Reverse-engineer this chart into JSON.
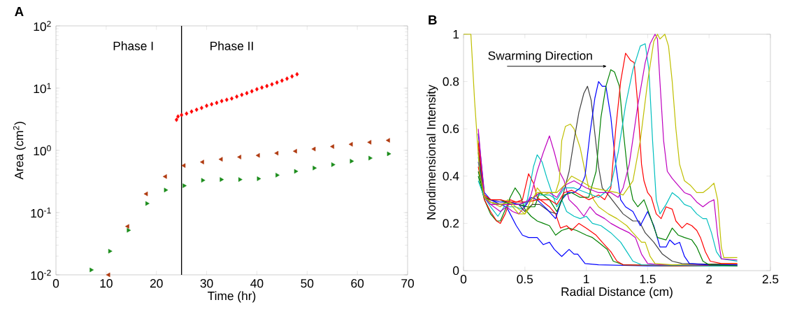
{
  "chart_data": [
    {
      "type": "scatter",
      "title": "A",
      "xlabel": "Time (hr)",
      "ylabel": "Area (cm$^{2}$)",
      "log": "y",
      "xlim": [
        0,
        70
      ],
      "ylim": [
        0.01,
        100
      ],
      "xticks": [
        0,
        10,
        20,
        30,
        40,
        50,
        60,
        70
      ],
      "yticks": [
        {
          "value": 0.01,
          "label": "10$^{-2}$"
        },
        {
          "value": 0.1,
          "label": "10$^{-1}$"
        },
        {
          "value": 1,
          "label": "10$^{0}$"
        },
        {
          "value": 10,
          "label": "10$^{1}$"
        },
        {
          "value": 100,
          "label": "10$^{2}$"
        }
      ],
      "ref_lines": [
        {
          "axis": "x",
          "value": 25,
          "color": "#000000"
        }
      ],
      "annotations": [
        "Phase I",
        "Phase II"
      ],
      "series": [
        {
          "color": "#ff0000",
          "marker": "diamond",
          "x": [
            24,
            24.3,
            25,
            26,
            27,
            28,
            29,
            30,
            31,
            32,
            33,
            34,
            35,
            36,
            37,
            38,
            39,
            40,
            41,
            42,
            43,
            44,
            45,
            46,
            47,
            48
          ],
          "values": [
            3.1,
            3.5,
            3.7,
            3.9,
            4.2,
            4.5,
            4.8,
            5.2,
            5.5,
            5.8,
            6.2,
            6.5,
            6.8,
            7.3,
            7.8,
            8.3,
            8.9,
            9.6,
            10.2,
            10.8,
            11.5,
            12.3,
            13.2,
            14.2,
            15.4,
            16.7
          ]
        },
        {
          "color": "#b03a10",
          "marker": "triangle-left",
          "x": [
            10.5,
            14.3,
            18,
            21.8,
            25.5,
            29.2,
            32.9,
            36.6,
            40.3,
            44,
            47.7,
            51.4,
            55.1,
            58.8,
            62.5,
            66.2
          ],
          "values": [
            0.01,
            0.06,
            0.2,
            0.38,
            0.57,
            0.65,
            0.72,
            0.78,
            0.83,
            0.9,
            0.97,
            1.05,
            1.15,
            1.25,
            1.35,
            1.45
          ]
        },
        {
          "color": "#1a8c1a",
          "marker": "triangle-right",
          "x": [
            7,
            10.7,
            14.4,
            18.1,
            21.8,
            25.5,
            29.2,
            32.9,
            36.6,
            40.3,
            44,
            47.7,
            51.4,
            55.1,
            58.8,
            62.5,
            66.2
          ],
          "values": [
            0.012,
            0.024,
            0.052,
            0.14,
            0.23,
            0.27,
            0.33,
            0.34,
            0.34,
            0.35,
            0.4,
            0.46,
            0.52,
            0.59,
            0.67,
            0.75,
            0.88
          ]
        }
      ]
    },
    {
      "type": "line",
      "title": "B",
      "xlabel": "Radial Distance (cm)",
      "ylabel": "Nondimensional Intensity",
      "xlim": [
        0,
        2.5
      ],
      "ylim": [
        0,
        1
      ],
      "xticks": [
        0,
        0.5,
        1,
        1.5,
        2,
        2.5
      ],
      "yticks": [
        0,
        0.2,
        0.4,
        0.6,
        0.8,
        1
      ],
      "annotations": [
        "Swarming Direction"
      ],
      "series": [
        {
          "color": "#0000ff",
          "x": [
            0.12,
            0.17,
            0.22,
            0.3,
            0.35,
            0.38,
            0.43,
            0.48,
            0.53,
            0.6,
            0.65,
            0.7,
            0.74,
            0.8,
            0.86,
            0.9,
            0.93,
            0.99,
            1.1,
            1.5,
            2.0,
            2.23
          ],
          "values": [
            0.58,
            0.33,
            0.3,
            0.28,
            0.27,
            0.24,
            0.19,
            0.15,
            0.14,
            0.14,
            0.11,
            0.12,
            0.09,
            0.06,
            0.09,
            0.07,
            0.07,
            0.03,
            0.025,
            0.02,
            0.02,
            0.02
          ]
        },
        {
          "color": "#008000",
          "x": [
            0.12,
            0.17,
            0.22,
            0.27,
            0.3,
            0.35,
            0.38,
            0.42,
            0.46,
            0.5,
            0.55,
            0.6,
            0.65,
            0.7,
            0.75,
            0.8,
            0.86,
            0.92,
            1.0,
            1.05,
            1.1,
            1.17,
            1.22,
            1.3,
            1.7,
            2.23
          ],
          "values": [
            0.4,
            0.3,
            0.24,
            0.21,
            0.21,
            0.27,
            0.31,
            0.35,
            0.32,
            0.26,
            0.23,
            0.21,
            0.2,
            0.19,
            0.15,
            0.17,
            0.18,
            0.17,
            0.15,
            0.14,
            0.12,
            0.09,
            0.04,
            0.025,
            0.02,
            0.02
          ]
        },
        {
          "color": "#ff0000",
          "x": [
            0.12,
            0.17,
            0.22,
            0.27,
            0.3,
            0.34,
            0.38,
            0.43,
            0.48,
            0.53,
            0.57,
            0.6,
            0.65,
            0.7,
            0.75,
            0.79,
            0.84,
            0.88,
            0.94,
            1.0,
            1.08,
            1.13,
            1.2,
            1.25,
            1.3,
            1.8,
            2.23
          ],
          "values": [
            0.44,
            0.3,
            0.25,
            0.21,
            0.2,
            0.24,
            0.3,
            0.29,
            0.3,
            0.41,
            0.37,
            0.31,
            0.29,
            0.27,
            0.24,
            0.18,
            0.19,
            0.17,
            0.2,
            0.18,
            0.15,
            0.12,
            0.08,
            0.04,
            0.025,
            0.02,
            0.025
          ]
        },
        {
          "color": "#00bfbf",
          "x": [
            0.12,
            0.17,
            0.22,
            0.28,
            0.33,
            0.38,
            0.42,
            0.48,
            0.52,
            0.57,
            0.6,
            0.64,
            0.68,
            0.72,
            0.76,
            0.8,
            0.84,
            0.9,
            0.95,
            1.0,
            1.05,
            1.12,
            1.2,
            1.28,
            1.33,
            1.38,
            1.45,
            2.0,
            2.23
          ],
          "values": [
            0.48,
            0.31,
            0.27,
            0.23,
            0.27,
            0.27,
            0.27,
            0.26,
            0.3,
            0.44,
            0.49,
            0.46,
            0.39,
            0.33,
            0.27,
            0.3,
            0.25,
            0.23,
            0.22,
            0.23,
            0.2,
            0.19,
            0.16,
            0.12,
            0.08,
            0.04,
            0.025,
            0.02,
            0.02
          ]
        },
        {
          "color": "#bf00bf",
          "x": [
            0.12,
            0.17,
            0.22,
            0.3,
            0.35,
            0.4,
            0.45,
            0.5,
            0.55,
            0.6,
            0.65,
            0.7,
            0.74,
            0.78,
            0.82,
            0.86,
            0.92,
            0.98,
            1.03,
            1.08,
            1.15,
            1.2,
            1.27,
            1.35,
            1.4,
            1.45,
            1.5,
            1.6,
            2.23
          ],
          "values": [
            0.52,
            0.31,
            0.28,
            0.25,
            0.27,
            0.25,
            0.24,
            0.27,
            0.32,
            0.42,
            0.5,
            0.57,
            0.5,
            0.42,
            0.38,
            0.3,
            0.27,
            0.23,
            0.27,
            0.24,
            0.22,
            0.2,
            0.18,
            0.16,
            0.14,
            0.07,
            0.03,
            0.025,
            0.025
          ]
        },
        {
          "color": "#bfbf00",
          "x": [
            0.12,
            0.17,
            0.22,
            0.3,
            0.36,
            0.4,
            0.45,
            0.5,
            0.56,
            0.6,
            0.65,
            0.7,
            0.75,
            0.78,
            0.8,
            0.83,
            0.87,
            0.9,
            0.95,
            0.99,
            1.02,
            1.06,
            1.1,
            1.18,
            1.25,
            1.33,
            1.38,
            1.45,
            1.48,
            1.52,
            1.56,
            1.7,
            2.23
          ],
          "values": [
            0.55,
            0.32,
            0.29,
            0.27,
            0.3,
            0.27,
            0.24,
            0.24,
            0.28,
            0.35,
            0.32,
            0.33,
            0.33,
            0.38,
            0.55,
            0.61,
            0.62,
            0.6,
            0.52,
            0.42,
            0.35,
            0.3,
            0.27,
            0.24,
            0.22,
            0.19,
            0.16,
            0.12,
            0.12,
            0.06,
            0.03,
            0.025,
            0.03
          ]
        },
        {
          "color": "#404040",
          "x": [
            0.12,
            0.17,
            0.22,
            0.3,
            0.38,
            0.45,
            0.5,
            0.56,
            0.62,
            0.7,
            0.76,
            0.8,
            0.86,
            0.9,
            0.94,
            0.98,
            1.01,
            1.04,
            1.07,
            1.1,
            1.13,
            1.18,
            1.24,
            1.3,
            1.38,
            1.43,
            1.48,
            1.55,
            1.62,
            1.7,
            1.78,
            2.23
          ],
          "values": [
            0.5,
            0.31,
            0.29,
            0.28,
            0.29,
            0.28,
            0.25,
            0.28,
            0.28,
            0.25,
            0.24,
            0.3,
            0.42,
            0.55,
            0.67,
            0.75,
            0.78,
            0.72,
            0.58,
            0.44,
            0.35,
            0.32,
            0.28,
            0.24,
            0.21,
            0.21,
            0.16,
            0.12,
            0.07,
            0.04,
            0.03,
            0.025
          ]
        },
        {
          "color": "#0000ff",
          "x": [
            0.12,
            0.17,
            0.22,
            0.3,
            0.38,
            0.45,
            0.5,
            0.55,
            0.6,
            0.68,
            0.75,
            0.8,
            0.85,
            0.9,
            0.95,
            0.99,
            1.03,
            1.07,
            1.1,
            1.13,
            1.16,
            1.2,
            1.24,
            1.28,
            1.32,
            1.38,
            1.44,
            1.5,
            1.55,
            1.6,
            1.65,
            1.68,
            1.72,
            1.76,
            1.8,
            1.84,
            2.0,
            2.23
          ],
          "values": [
            0.46,
            0.31,
            0.3,
            0.29,
            0.29,
            0.28,
            0.27,
            0.31,
            0.3,
            0.26,
            0.22,
            0.3,
            0.33,
            0.33,
            0.35,
            0.4,
            0.58,
            0.73,
            0.8,
            0.78,
            0.78,
            0.65,
            0.45,
            0.3,
            0.27,
            0.25,
            0.19,
            0.25,
            0.19,
            0.1,
            0.1,
            0.13,
            0.11,
            0.12,
            0.06,
            0.03,
            0.025,
            0.025
          ]
        },
        {
          "color": "#008000",
          "x": [
            0.12,
            0.17,
            0.22,
            0.3,
            0.38,
            0.45,
            0.52,
            0.58,
            0.62,
            0.7,
            0.76,
            0.82,
            0.88,
            0.95,
            1.02,
            1.08,
            1.12,
            1.16,
            1.2,
            1.23,
            1.27,
            1.3,
            1.34,
            1.38,
            1.42,
            1.47,
            1.52,
            1.58,
            1.65,
            1.7,
            1.75,
            1.8,
            1.86,
            1.9,
            1.95,
            2.0,
            2.23
          ],
          "values": [
            0.42,
            0.31,
            0.3,
            0.3,
            0.28,
            0.28,
            0.27,
            0.27,
            0.33,
            0.3,
            0.25,
            0.32,
            0.33,
            0.31,
            0.31,
            0.42,
            0.65,
            0.78,
            0.85,
            0.84,
            0.78,
            0.6,
            0.4,
            0.3,
            0.27,
            0.3,
            0.23,
            0.14,
            0.13,
            0.18,
            0.15,
            0.14,
            0.13,
            0.1,
            0.04,
            0.025,
            0.02
          ]
        },
        {
          "color": "#ff0000",
          "x": [
            0.12,
            0.17,
            0.22,
            0.3,
            0.38,
            0.45,
            0.52,
            0.6,
            0.7,
            0.76,
            0.82,
            0.88,
            0.95,
            1.02,
            1.1,
            1.15,
            1.2,
            1.24,
            1.28,
            1.32,
            1.36,
            1.39,
            1.42,
            1.45,
            1.47,
            1.5,
            1.53,
            1.57,
            1.61,
            1.65,
            1.7,
            1.73,
            1.78,
            1.82,
            1.86,
            1.9,
            1.93,
            1.97,
            2.01,
            2.1,
            2.23
          ],
          "values": [
            0.54,
            0.32,
            0.3,
            0.3,
            0.29,
            0.29,
            0.29,
            0.3,
            0.3,
            0.28,
            0.33,
            0.34,
            0.32,
            0.3,
            0.32,
            0.3,
            0.35,
            0.6,
            0.8,
            0.92,
            0.89,
            0.88,
            0.7,
            0.45,
            0.38,
            0.33,
            0.31,
            0.24,
            0.22,
            0.27,
            0.26,
            0.21,
            0.18,
            0.2,
            0.19,
            0.17,
            0.14,
            0.08,
            0.04,
            0.03,
            0.03
          ]
        },
        {
          "color": "#00bfbf",
          "x": [
            0.12,
            0.17,
            0.22,
            0.3,
            0.38,
            0.45,
            0.52,
            0.6,
            0.7,
            0.76,
            0.82,
            0.9,
            1.0,
            1.1,
            1.15,
            1.2,
            1.26,
            1.32,
            1.38,
            1.44,
            1.48,
            1.51,
            1.54,
            1.57,
            1.6,
            1.65,
            1.7,
            1.75,
            1.8,
            1.85,
            1.9,
            1.95,
            1.98,
            2.02,
            2.06,
            2.1,
            2.23
          ],
          "values": [
            0.38,
            0.31,
            0.28,
            0.28,
            0.28,
            0.28,
            0.29,
            0.32,
            0.32,
            0.3,
            0.35,
            0.35,
            0.33,
            0.31,
            0.33,
            0.36,
            0.5,
            0.7,
            0.85,
            0.95,
            0.96,
            0.85,
            0.55,
            0.3,
            0.24,
            0.28,
            0.33,
            0.31,
            0.28,
            0.27,
            0.24,
            0.22,
            0.22,
            0.16,
            0.08,
            0.05,
            0.04
          ]
        },
        {
          "color": "#bf00bf",
          "x": [
            0.12,
            0.17,
            0.22,
            0.3,
            0.38,
            0.45,
            0.55,
            0.62,
            0.7,
            0.76,
            0.82,
            0.9,
            1.0,
            1.1,
            1.2,
            1.26,
            1.3,
            1.35,
            1.42,
            1.48,
            1.52,
            1.56,
            1.58,
            1.6,
            1.63,
            1.66,
            1.7,
            1.75,
            1.8,
            1.85,
            1.9,
            1.95,
            2.0,
            2.04,
            2.07,
            2.1,
            2.23
          ],
          "values": [
            0.6,
            0.31,
            0.28,
            0.28,
            0.28,
            0.28,
            0.3,
            0.33,
            0.33,
            0.31,
            0.36,
            0.38,
            0.35,
            0.33,
            0.33,
            0.31,
            0.35,
            0.45,
            0.7,
            0.88,
            0.96,
            1,
            0.98,
            0.8,
            0.55,
            0.42,
            0.39,
            0.36,
            0.33,
            0.32,
            0.29,
            0.27,
            0.29,
            0.3,
            0.15,
            0.05,
            0.045
          ]
        },
        {
          "color": "#bfbf00",
          "x": [
            0,
            0.06,
            0.09,
            0.13,
            0.17,
            0.22,
            0.3,
            0.38,
            0.45,
            0.5,
            0.55,
            0.6,
            0.7,
            0.76,
            0.82,
            0.88,
            0.95,
            1.05,
            1.15,
            1.25,
            1.3,
            1.38,
            1.44,
            1.5,
            1.55,
            1.58,
            1.6,
            1.62,
            1.64,
            1.67,
            1.7,
            1.73,
            1.76,
            1.8,
            1.85,
            1.9,
            1.95,
            2.0,
            2.04,
            2.07,
            2.1,
            2.12,
            2.23
          ],
          "values": [
            1,
            1,
            0.72,
            0.42,
            0.31,
            0.29,
            0.28,
            0.29,
            0.26,
            0.24,
            0.3,
            0.33,
            0.33,
            0.33,
            0.36,
            0.4,
            0.38,
            0.35,
            0.34,
            0.33,
            0.32,
            0.38,
            0.55,
            0.8,
            0.97,
            1,
            0.98,
            0.99,
            1,
            0.95,
            0.8,
            0.6,
            0.45,
            0.38,
            0.36,
            0.33,
            0.33,
            0.35,
            0.37,
            0.3,
            0.1,
            0.055,
            0.055
          ]
        }
      ]
    }
  ]
}
